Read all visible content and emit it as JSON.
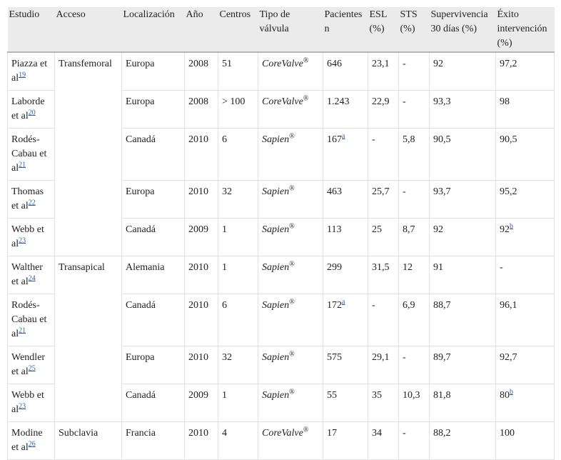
{
  "table": {
    "header": [
      "Estudio",
      "Acceso",
      "Localización",
      "Año",
      "Centros",
      "Tipo de válvula",
      "Pacientes n",
      "ESL (%)",
      "STS (%)",
      "Supervivencia 30 días (%)",
      "Éxito intervención (%)"
    ],
    "groups": [
      {
        "acceso": "Transfemoral",
        "rows": [
          [
            {
              "text": "Piazza et al",
              "ref": "19"
            },
            "Europa",
            "2008",
            "51",
            {
              "text": "CoreValve",
              "sup": "®"
            },
            "646",
            "23,1",
            "-",
            "92",
            "97,2"
          ],
          [
            {
              "text": "Laborde et al",
              "ref": "20"
            },
            "Europa",
            "2008",
            "> 100",
            {
              "text": "CoreValve",
              "sup": "®"
            },
            "1.243",
            "22,9",
            "-",
            "93,3",
            "98"
          ],
          [
            {
              "text": "Rodés-Cabau et al",
              "ref": "21"
            },
            "Canadá",
            "2010",
            "6",
            {
              "text": "Sapien",
              "sup": "®"
            },
            {
              "text": "167",
              "ref": "a"
            },
            "-",
            "5,8",
            "90,5",
            "90,5"
          ],
          [
            {
              "text": "Thomas et al",
              "ref": "22"
            },
            "Europa",
            "2010",
            "32",
            {
              "text": "Sapien",
              "sup": "®"
            },
            "463",
            "25,7",
            "-",
            "93,7",
            "95,2"
          ],
          [
            {
              "text": "Webb et al",
              "ref": "23"
            },
            "Canadá",
            "2009",
            "1",
            {
              "text": "Sapien",
              "sup": "®"
            },
            "113",
            "25",
            "8,7",
            "92",
            {
              "text": "92",
              "ref": "b"
            }
          ]
        ]
      },
      {
        "acceso": "Transapical",
        "rows": [
          [
            {
              "text": "Walther et al",
              "ref": "24"
            },
            "Alemania",
            "2010",
            "1",
            {
              "text": "Sapien",
              "sup": "®"
            },
            "299",
            "31,5",
            "12",
            "91",
            "-"
          ],
          [
            {
              "text": "Rodés-Cabau et al",
              "ref": "21"
            },
            "Canadá",
            "2010",
            "6",
            {
              "text": "Sapien",
              "sup": "®"
            },
            {
              "text": "172",
              "ref": "a"
            },
            "-",
            "6,9",
            "88,7",
            "96,1"
          ],
          [
            {
              "text": "Wendler et al",
              "ref": "25"
            },
            "Europa",
            "2010",
            "32",
            {
              "text": "Sapien",
              "sup": "®"
            },
            "575",
            "29,1",
            "-",
            "89,7",
            "92,7"
          ],
          [
            {
              "text": "Webb et al",
              "ref": "23"
            },
            "Canadá",
            "2009",
            "1",
            {
              "text": "Sapien",
              "sup": "®"
            },
            "55",
            "35",
            "10,3",
            "81,8",
            {
              "text": "80",
              "ref": "b"
            }
          ]
        ]
      },
      {
        "acceso": "Subclavia",
        "rows": [
          [
            {
              "text": "Modine et al",
              "ref": "26"
            },
            "Francia",
            "2010",
            "4",
            {
              "text": "CoreValve",
              "sup": "®"
            },
            "17",
            "34",
            "-",
            "88,2",
            "100"
          ]
        ]
      }
    ]
  }
}
